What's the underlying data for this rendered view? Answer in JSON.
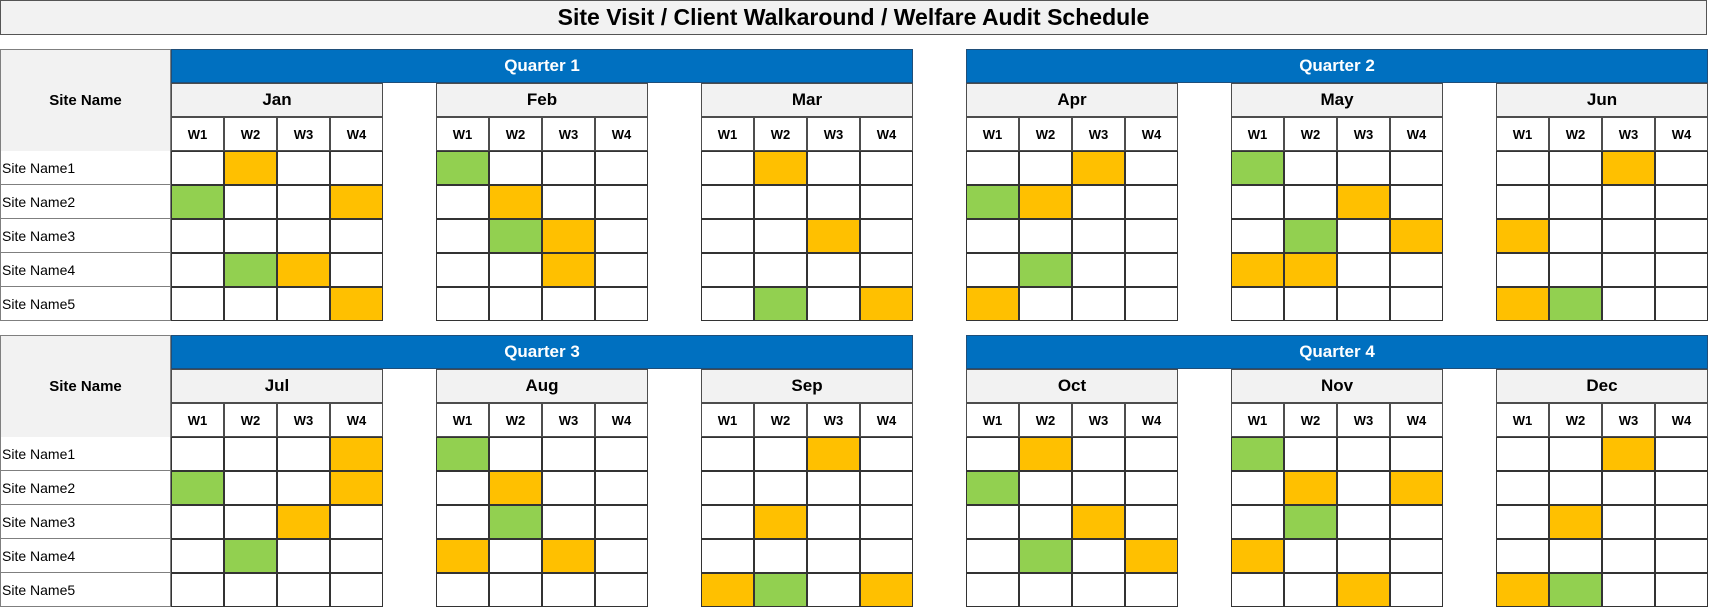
{
  "title": "Site Visit / Client Walkaround / Welfare Audit Schedule",
  "site_header": "Site Name",
  "sites": [
    "Site Name1",
    "Site Name2",
    "Site Name3",
    "Site Name4",
    "Site Name5"
  ],
  "weeks": [
    "W1",
    "W2",
    "W3",
    "W4"
  ],
  "legend_colors": {
    "orange": "#ffc000",
    "green": "#92d050",
    "quarter_band": "#0070c0"
  },
  "blocks": [
    {
      "quarters": [
        "Quarter 1",
        "Quarter 2"
      ],
      "months": [
        {
          "name": "Jan",
          "grid": [
            [
              "",
              "O",
              "",
              ""
            ],
            [
              "G",
              "",
              "",
              "O"
            ],
            [
              "",
              "",
              "",
              ""
            ],
            [
              "",
              "G",
              "O",
              ""
            ],
            [
              "",
              "",
              "",
              "O"
            ]
          ]
        },
        {
          "name": "Feb",
          "grid": [
            [
              "G",
              "",
              "",
              ""
            ],
            [
              "",
              "O",
              "",
              ""
            ],
            [
              "",
              "G",
              "O",
              ""
            ],
            [
              "",
              "",
              "O",
              ""
            ],
            [
              "",
              "",
              "",
              ""
            ]
          ]
        },
        {
          "name": "Mar",
          "grid": [
            [
              "",
              "O",
              "",
              ""
            ],
            [
              "",
              "",
              "",
              ""
            ],
            [
              "",
              "",
              "O",
              ""
            ],
            [
              "",
              "",
              "",
              ""
            ],
            [
              "",
              "G",
              "",
              "O"
            ]
          ]
        },
        {
          "name": "Apr",
          "grid": [
            [
              "",
              "",
              "O",
              ""
            ],
            [
              "G",
              "O",
              "",
              ""
            ],
            [
              "",
              "",
              "",
              ""
            ],
            [
              "",
              "G",
              "",
              ""
            ],
            [
              "O",
              "",
              "",
              ""
            ]
          ]
        },
        {
          "name": "May",
          "grid": [
            [
              "G",
              "",
              "",
              ""
            ],
            [
              "",
              "",
              "O",
              ""
            ],
            [
              "",
              "G",
              "",
              "O"
            ],
            [
              "O",
              "O",
              "",
              ""
            ],
            [
              "",
              "",
              "",
              ""
            ]
          ]
        },
        {
          "name": "Jun",
          "grid": [
            [
              "",
              "",
              "O",
              ""
            ],
            [
              "",
              "",
              "",
              ""
            ],
            [
              "O",
              "",
              "",
              ""
            ],
            [
              "",
              "",
              "",
              ""
            ],
            [
              "O",
              "G",
              "",
              ""
            ]
          ]
        }
      ]
    },
    {
      "quarters": [
        "Quarter 3",
        "Quarter 4"
      ],
      "months": [
        {
          "name": "Jul",
          "grid": [
            [
              "",
              "",
              "",
              "O"
            ],
            [
              "G",
              "",
              "",
              "O"
            ],
            [
              "",
              "",
              "O",
              ""
            ],
            [
              "",
              "G",
              "",
              ""
            ],
            [
              "",
              "",
              "",
              ""
            ]
          ]
        },
        {
          "name": "Aug",
          "grid": [
            [
              "G",
              "",
              "",
              ""
            ],
            [
              "",
              "O",
              "",
              ""
            ],
            [
              "",
              "G",
              "",
              ""
            ],
            [
              "O",
              "",
              "O",
              ""
            ],
            [
              "",
              "",
              "",
              ""
            ]
          ]
        },
        {
          "name": "Sep",
          "grid": [
            [
              "",
              "",
              "O",
              ""
            ],
            [
              "",
              "",
              "",
              ""
            ],
            [
              "",
              "O",
              "",
              ""
            ],
            [
              "",
              "",
              "",
              ""
            ],
            [
              "O",
              "G",
              "",
              "O"
            ]
          ]
        },
        {
          "name": "Oct",
          "grid": [
            [
              "",
              "O",
              "",
              ""
            ],
            [
              "G",
              "",
              "",
              ""
            ],
            [
              "",
              "",
              "O",
              ""
            ],
            [
              "",
              "G",
              "",
              "O"
            ],
            [
              "",
              "",
              "",
              ""
            ]
          ]
        },
        {
          "name": "Nov",
          "grid": [
            [
              "G",
              "",
              "",
              ""
            ],
            [
              "",
              "O",
              "",
              "O"
            ],
            [
              "",
              "G",
              "",
              ""
            ],
            [
              "O",
              "",
              "",
              ""
            ],
            [
              "",
              "",
              "O",
              ""
            ]
          ]
        },
        {
          "name": "Dec",
          "grid": [
            [
              "",
              "",
              "O",
              ""
            ],
            [
              "",
              "",
              "",
              ""
            ],
            [
              "",
              "O",
              "",
              ""
            ],
            [
              "",
              "",
              "",
              ""
            ],
            [
              "O",
              "G",
              "",
              ""
            ]
          ]
        }
      ]
    }
  ]
}
